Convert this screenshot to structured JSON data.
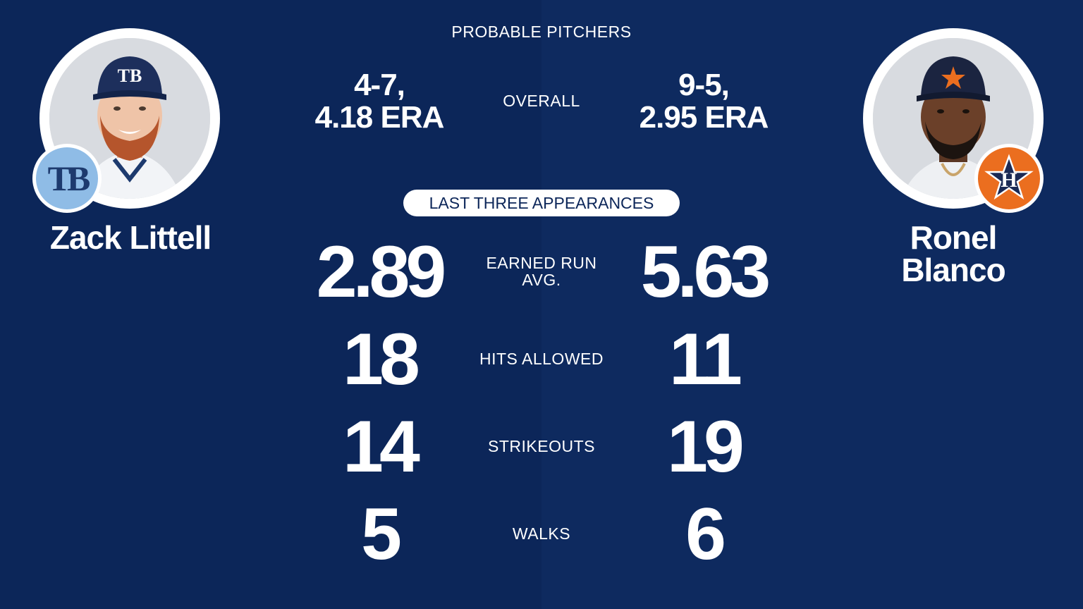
{
  "header": {
    "title": "PROBABLE PITCHERS"
  },
  "overall": {
    "label": "OVERALL",
    "left": {
      "record": "4-7,",
      "era": "4.18 ERA"
    },
    "right": {
      "record": "9-5,",
      "era": "2.95 ERA"
    }
  },
  "section": {
    "title": "LAST THREE APPEARANCES"
  },
  "stats": [
    {
      "label_line1": "EARNED RUN",
      "label_line2": "AVG.",
      "left": "2.89",
      "right": "5.63"
    },
    {
      "label_line1": "HITS ALLOWED",
      "left": "18",
      "right": "11"
    },
    {
      "label_line1": "STRIKEOUTS",
      "left": "14",
      "right": "19"
    },
    {
      "label_line1": "WALKS",
      "left": "5",
      "right": "6"
    }
  ],
  "players": {
    "left": {
      "name": "Zack Littell",
      "team_logo_text": "TB",
      "logo_icon": "rays-logo-icon",
      "badge_color": "#8fbce6"
    },
    "right": {
      "name_line1": "Ronel",
      "name_line2": "Blanco",
      "logo_icon": "astros-logo-icon",
      "badge_color": "#eb6e1f"
    }
  },
  "colors": {
    "background_left": "#0c2659",
    "background_right": "#0e2a5f",
    "text": "#ffffff"
  }
}
